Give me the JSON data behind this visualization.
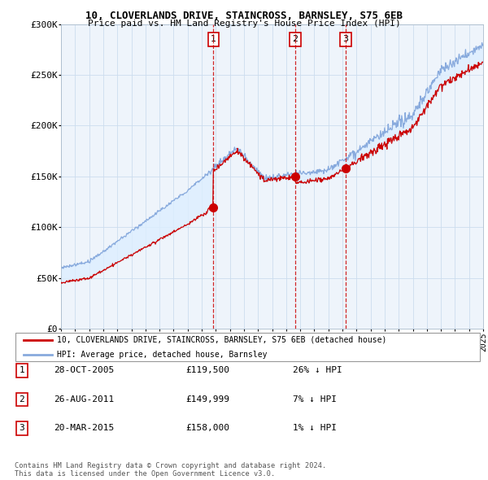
{
  "title": "10, CLOVERLANDS DRIVE, STAINCROSS, BARNSLEY, S75 6EB",
  "subtitle": "Price paid vs. HM Land Registry's House Price Index (HPI)",
  "ylim": [
    0,
    300000
  ],
  "yticks": [
    0,
    50000,
    100000,
    150000,
    200000,
    250000,
    300000
  ],
  "ytick_labels": [
    "£0",
    "£50K",
    "£100K",
    "£150K",
    "£200K",
    "£250K",
    "£300K"
  ],
  "x_start_year": 1995,
  "x_end_year": 2025,
  "sale_dates": [
    2005.83,
    2011.65,
    2015.22
  ],
  "sale_prices": [
    119500,
    149999,
    158000
  ],
  "sale_labels": [
    "1",
    "2",
    "3"
  ],
  "sale_date_strs": [
    "28-OCT-2005",
    "26-AUG-2011",
    "20-MAR-2015"
  ],
  "sale_price_strs": [
    "£119,500",
    "£149,999",
    "£158,000"
  ],
  "sale_hpi_strs": [
    "26% ↓ HPI",
    "7% ↓ HPI",
    "1% ↓ HPI"
  ],
  "legend_line1": "10, CLOVERLANDS DRIVE, STAINCROSS, BARNSLEY, S75 6EB (detached house)",
  "legend_line2": "HPI: Average price, detached house, Barnsley",
  "footer1": "Contains HM Land Registry data © Crown copyright and database right 2024.",
  "footer2": "This data is licensed under the Open Government Licence v3.0.",
  "red_color": "#cc0000",
  "blue_color": "#88aadd",
  "fill_color": "#ddeeff",
  "grid_color": "#ccddee",
  "bg_chart_color": "#eef4fb"
}
